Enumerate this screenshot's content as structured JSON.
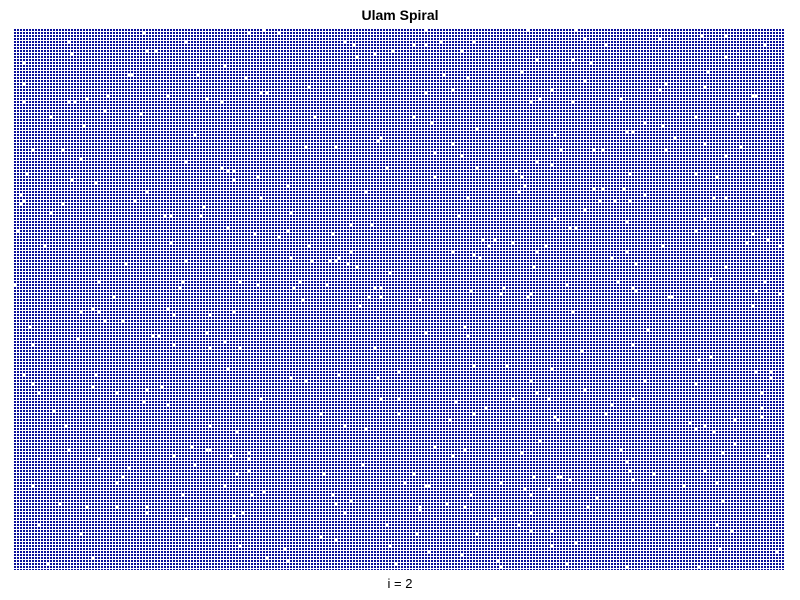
{
  "chart_data": {
    "type": "heatmap",
    "title": "Ulam Spiral",
    "xlabel": "i = 2",
    "ylabel": "",
    "description_of_values": "Ulam spiral of integers; cells rendered as dense dark-blue dot pattern with white gaps",
    "grid": false,
    "legend": "none",
    "colors": {
      "dot": "#0a0f9a",
      "background": "#ffffff"
    }
  }
}
